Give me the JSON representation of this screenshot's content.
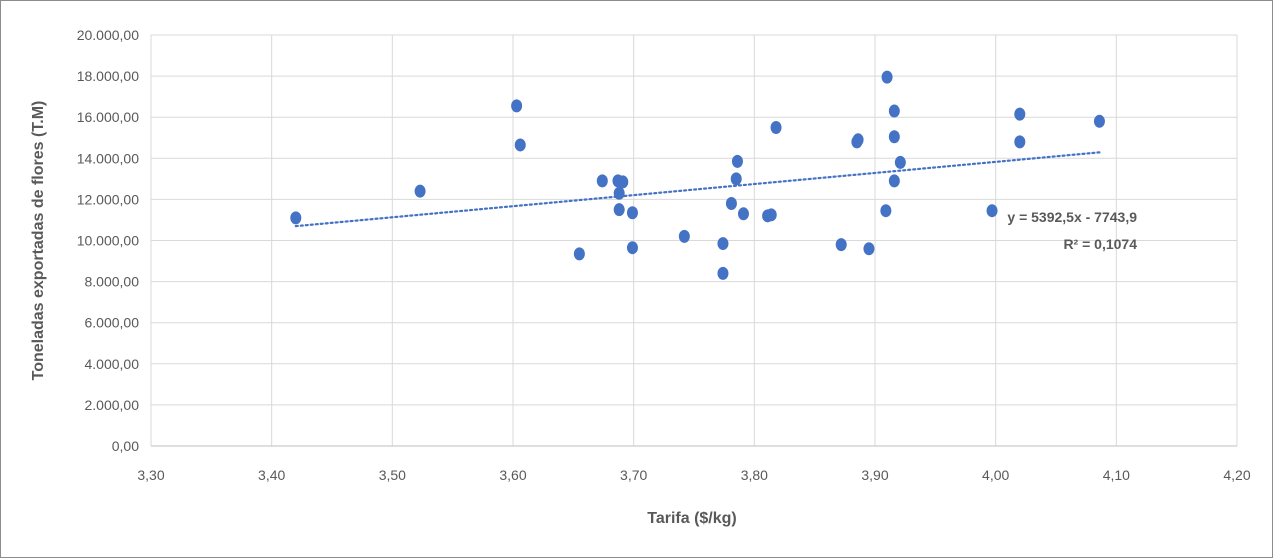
{
  "chart_data": {
    "type": "scatter",
    "title": "",
    "xlabel": "Tarifa ($/kg)",
    "ylabel": "Toneladas exportadas de flores (T.M)",
    "xlim": [
      3.3,
      4.2
    ],
    "ylim": [
      0,
      20000
    ],
    "x_ticks": [
      "3,30",
      "3,40",
      "3,50",
      "3,60",
      "3,70",
      "3,80",
      "3,90",
      "4,00",
      "4,10",
      "4,20"
    ],
    "y_ticks": [
      "0,00",
      "2.000,00",
      "4.000,00",
      "6.000,00",
      "8.000,00",
      "10.000,00",
      "12.000,00",
      "14.000,00",
      "16.000,00",
      "18.000,00",
      "20.000,00"
    ],
    "grid": true,
    "legend": "none",
    "colors": {
      "points": "#4472c4",
      "trendline": "#4472c4",
      "grid": "#d9d9d9",
      "text": "#595959"
    },
    "series": [
      {
        "points": [
          {
            "x": 3.42,
            "y": 11100
          },
          {
            "x": 3.523,
            "y": 12400
          },
          {
            "x": 3.603,
            "y": 16550
          },
          {
            "x": 3.606,
            "y": 14650
          },
          {
            "x": 3.655,
            "y": 9350
          },
          {
            "x": 3.674,
            "y": 12900
          },
          {
            "x": 3.687,
            "y": 12900
          },
          {
            "x": 3.688,
            "y": 12300
          },
          {
            "x": 3.688,
            "y": 11500
          },
          {
            "x": 3.691,
            "y": 12850
          },
          {
            "x": 3.699,
            "y": 11350
          },
          {
            "x": 3.699,
            "y": 9650
          },
          {
            "x": 3.742,
            "y": 10200
          },
          {
            "x": 3.774,
            "y": 9850
          },
          {
            "x": 3.774,
            "y": 8400
          },
          {
            "x": 3.781,
            "y": 11800
          },
          {
            "x": 3.785,
            "y": 13000
          },
          {
            "x": 3.786,
            "y": 13850
          },
          {
            "x": 3.791,
            "y": 11300
          },
          {
            "x": 3.811,
            "y": 11200
          },
          {
            "x": 3.814,
            "y": 11250
          },
          {
            "x": 3.818,
            "y": 15500
          },
          {
            "x": 3.872,
            "y": 9800
          },
          {
            "x": 3.885,
            "y": 14800
          },
          {
            "x": 3.886,
            "y": 14900
          },
          {
            "x": 3.895,
            "y": 9600
          },
          {
            "x": 3.909,
            "y": 11450
          },
          {
            "x": 3.91,
            "y": 17950
          },
          {
            "x": 3.916,
            "y": 16300
          },
          {
            "x": 3.916,
            "y": 15050
          },
          {
            "x": 3.916,
            "y": 12900
          },
          {
            "x": 3.921,
            "y": 13800
          },
          {
            "x": 3.997,
            "y": 11450
          },
          {
            "x": 4.02,
            "y": 16150
          },
          {
            "x": 4.02,
            "y": 14800
          },
          {
            "x": 4.086,
            "y": 15800
          }
        ]
      }
    ],
    "trendline": {
      "type": "linear",
      "slope": 5392.5,
      "intercept": -7743.9,
      "x_range": [
        3.42,
        4.086
      ],
      "equation_label": "y = 5392,5x - 7743,9",
      "r2_label": "R² = 0,1074"
    }
  }
}
